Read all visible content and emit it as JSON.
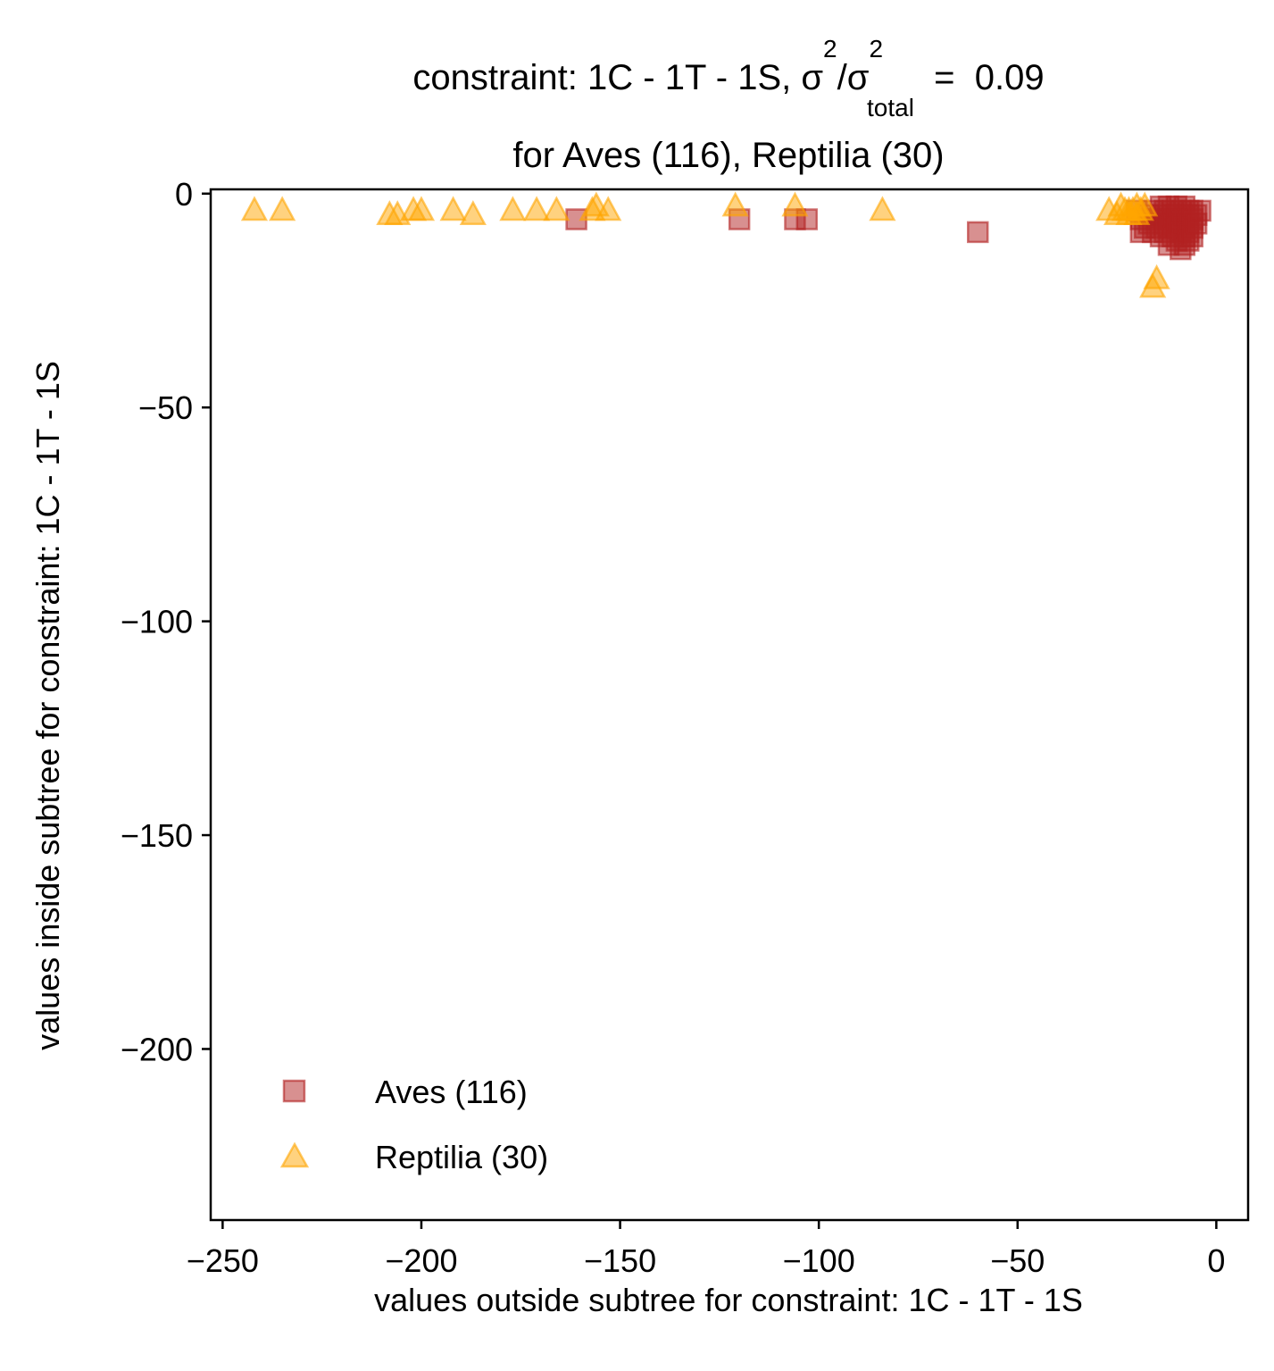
{
  "title": {
    "line1_prefix": "constraint: 1C - 1T - 1S, σ",
    "sup1": "2",
    "slash": "/σ",
    "sup2": "2",
    "sub": "total",
    "line1_suffix": "  =  0.09",
    "line2": "for Aves (116), Reptilia (30)"
  },
  "chart_data": {
    "type": "scatter",
    "xlabel": "values outside subtree for constraint: 1C - 1T - 1S",
    "ylabel": "values inside subtree for constraint: 1C - 1T - 1S",
    "xlim": [
      -253,
      8
    ],
    "ylim": [
      -240,
      1
    ],
    "xticks": [
      -250,
      -200,
      -150,
      -100,
      -50,
      0
    ],
    "yticks": [
      0,
      -50,
      -100,
      -150,
      -200
    ],
    "xtick_labels": [
      "−250",
      "−200",
      "−150",
      "−100",
      "−50",
      "0"
    ],
    "ytick_labels": [
      "0",
      "−50",
      "−100",
      "−150",
      "−200"
    ],
    "grid": false,
    "legend_placement": "lower-left",
    "series": [
      {
        "name": "Aves (116)",
        "marker": "square",
        "color": "#b22222",
        "points": [
          [
            -161,
            -6
          ],
          [
            -120,
            -6
          ],
          [
            -106,
            -6
          ],
          [
            -103,
            -6
          ],
          [
            -60,
            -9
          ],
          [
            -20,
            -4
          ],
          [
            -19,
            -6
          ],
          [
            -19,
            -9
          ],
          [
            -18,
            -8
          ],
          [
            -17,
            -5
          ],
          [
            -17,
            -7
          ],
          [
            -16,
            -4
          ],
          [
            -16,
            -9
          ],
          [
            -15,
            -6
          ],
          [
            -15,
            -8
          ],
          [
            -14,
            -3
          ],
          [
            -14,
            -5
          ],
          [
            -14,
            -10
          ],
          [
            -13,
            -4
          ],
          [
            -13,
            -7
          ],
          [
            -13,
            -9
          ],
          [
            -12,
            -3
          ],
          [
            -12,
            -6
          ],
          [
            -12,
            -8
          ],
          [
            -12,
            -12
          ],
          [
            -11,
            -4
          ],
          [
            -11,
            -5
          ],
          [
            -11,
            -7
          ],
          [
            -11,
            -10
          ],
          [
            -10,
            -3
          ],
          [
            -10,
            -5
          ],
          [
            -10,
            -6
          ],
          [
            -10,
            -8
          ],
          [
            -10,
            -11
          ],
          [
            -9,
            -4
          ],
          [
            -9,
            -6
          ],
          [
            -9,
            -7
          ],
          [
            -9,
            -9
          ],
          [
            -9,
            -13
          ],
          [
            -8,
            -3
          ],
          [
            -8,
            -5
          ],
          [
            -8,
            -6
          ],
          [
            -8,
            -8
          ],
          [
            -8,
            -10
          ],
          [
            -8,
            -12
          ],
          [
            -7,
            -4
          ],
          [
            -7,
            -5
          ],
          [
            -7,
            -7
          ],
          [
            -7,
            -9
          ],
          [
            -7,
            -11
          ],
          [
            -6,
            -4
          ],
          [
            -6,
            -6
          ],
          [
            -6,
            -8
          ],
          [
            -6,
            -10
          ],
          [
            -5,
            -5
          ],
          [
            -5,
            -7
          ],
          [
            -4,
            -4
          ]
        ]
      },
      {
        "name": "Reptilia (30)",
        "marker": "triangle",
        "color": "#ffa500",
        "points": [
          [
            -242,
            -4
          ],
          [
            -235,
            -4
          ],
          [
            -208,
            -5
          ],
          [
            -206,
            -5
          ],
          [
            -202,
            -4
          ],
          [
            -200,
            -4
          ],
          [
            -192,
            -4
          ],
          [
            -187,
            -5
          ],
          [
            -177,
            -4
          ],
          [
            -171,
            -4
          ],
          [
            -166,
            -4
          ],
          [
            -157,
            -4
          ],
          [
            -156,
            -3
          ],
          [
            -153,
            -4
          ],
          [
            -121,
            -3
          ],
          [
            -106,
            -3
          ],
          [
            -84,
            -4
          ],
          [
            -27,
            -4
          ],
          [
            -25,
            -5
          ],
          [
            -24,
            -3
          ],
          [
            -23,
            -4
          ],
          [
            -22,
            -5
          ],
          [
            -21,
            -4
          ],
          [
            -20,
            -3
          ],
          [
            -20,
            -5
          ],
          [
            -19,
            -4
          ],
          [
            -18,
            -3
          ],
          [
            -16,
            -22
          ],
          [
            -15,
            -20
          ],
          [
            -22,
            -4
          ]
        ]
      }
    ]
  }
}
